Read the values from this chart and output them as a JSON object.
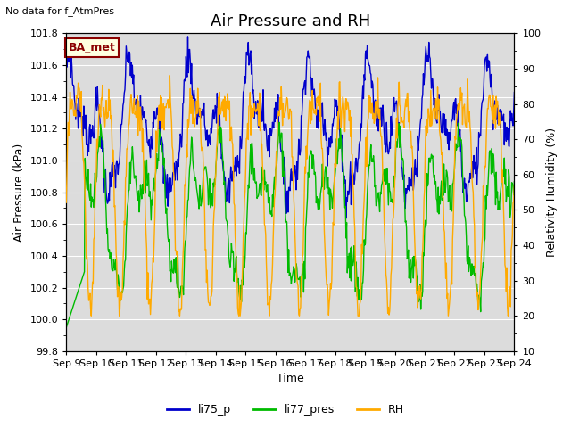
{
  "title": "Air Pressure and RH",
  "top_left_text": "No data for f_AtmPres",
  "xlabel": "Time",
  "ylabel_left": "Air Pressure (kPa)",
  "ylabel_right": "Relativity Humidity (%)",
  "ylim_left": [
    99.8,
    101.8
  ],
  "ylim_right": [
    10,
    100
  ],
  "yticks_left": [
    99.8,
    100.0,
    100.2,
    100.4,
    100.6,
    100.8,
    101.0,
    101.2,
    101.4,
    101.6,
    101.8
  ],
  "yticks_right": [
    10,
    20,
    30,
    40,
    50,
    60,
    70,
    80,
    90,
    100
  ],
  "xtick_labels": [
    "Sep 9",
    "Sep 10",
    "Sep 11",
    "Sep 12",
    "Sep 13",
    "Sep 14",
    "Sep 15",
    "Sep 16",
    "Sep 17",
    "Sep 18",
    "Sep 19",
    "Sep 20",
    "Sep 21",
    "Sep 22",
    "Sep 23",
    "Sep 24"
  ],
  "color_blue": "#0000cc",
  "color_green": "#00bb00",
  "color_orange": "#ffaa00",
  "legend_labels": [
    "li75_p",
    "li77_pres",
    "RH"
  ],
  "ba_met_label": "BA_met",
  "bg_color": "#dcdcdc",
  "fig_bg": "#ffffff",
  "title_fontsize": 13,
  "label_fontsize": 9,
  "tick_fontsize": 8,
  "legend_fontsize": 9
}
